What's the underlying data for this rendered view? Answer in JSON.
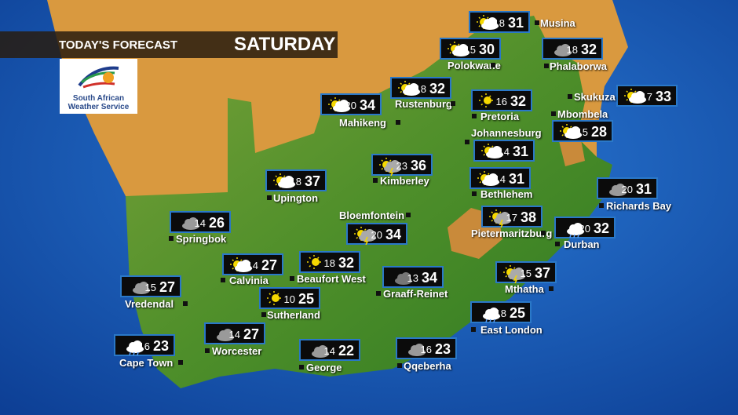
{
  "header": {
    "title": "TODAY'S FORECAST",
    "day": "SATURDAY"
  },
  "logo": {
    "line1": "South African",
    "line2": "Weather Service"
  },
  "colors": {
    "ocean": "#1a5fb8",
    "land": "#4f8f2a",
    "neighbours": "#d9993f",
    "box_border": "#2a78c8"
  },
  "cities": [
    {
      "name": "Musina",
      "min": "18",
      "max": "31",
      "icon": "partly-cloudy-icon"
    },
    {
      "name": "Polokwane",
      "min": "15",
      "max": "30",
      "icon": "partly-cloudy-icon"
    },
    {
      "name": "Phalaborwa",
      "min": "18",
      "max": "32",
      "icon": "cloudy-icon"
    },
    {
      "name": "Rustenburg",
      "min": "18",
      "max": "32",
      "icon": "partly-cloudy-icon"
    },
    {
      "name": "Mahikeng",
      "min": "20",
      "max": "34",
      "icon": "partly-cloudy-icon"
    },
    {
      "name": "Pretoria",
      "min": "16",
      "max": "32",
      "icon": "sunny-icon"
    },
    {
      "name": "Skukuza",
      "min": "17",
      "max": "33",
      "icon": "partly-cloudy-icon"
    },
    {
      "name": "Mbombela",
      "min": "15",
      "max": "28",
      "icon": "partly-cloudy-icon"
    },
    {
      "name": "Johannesburg",
      "min": "14",
      "max": "31",
      "icon": "partly-cloudy-icon"
    },
    {
      "name": "Kimberley",
      "min": "23",
      "max": "36",
      "icon": "thunderstorm-sun-icon"
    },
    {
      "name": "Bethlehem",
      "min": "14",
      "max": "31",
      "icon": "partly-cloudy-icon"
    },
    {
      "name": "Upington",
      "min": "18",
      "max": "37",
      "icon": "partly-cloudy-icon"
    },
    {
      "name": "Richards Bay",
      "min": "20",
      "max": "31",
      "icon": "cloudy-icon"
    },
    {
      "name": "Bloemfontein",
      "min": "20",
      "max": "34",
      "icon": "thunderstorm-sun-icon"
    },
    {
      "name": "Springbok",
      "min": "14",
      "max": "26",
      "icon": "cloudy-icon"
    },
    {
      "name": "Pietermaritzburg",
      "min": "17",
      "max": "38",
      "icon": "thunderstorm-sun-icon"
    },
    {
      "name": "Durban",
      "min": "20",
      "max": "32",
      "icon": "rain-icon"
    },
    {
      "name": "Calvinia",
      "min": "14",
      "max": "27",
      "icon": "partly-cloudy-icon"
    },
    {
      "name": "Beaufort West",
      "min": "18",
      "max": "32",
      "icon": "sunny-icon"
    },
    {
      "name": "Graaff-Reinet",
      "min": "13",
      "max": "34",
      "icon": "dark-cloudy-icon"
    },
    {
      "name": "Mthatha",
      "min": "15",
      "max": "37",
      "icon": "thunderstorm-sun-icon"
    },
    {
      "name": "Vredendal",
      "min": "15",
      "max": "27",
      "icon": "cloudy-icon"
    },
    {
      "name": "Sutherland",
      "min": "10",
      "max": "25",
      "icon": "sunny-icon"
    },
    {
      "name": "East London",
      "min": "18",
      "max": "25",
      "icon": "rain-icon"
    },
    {
      "name": "Worcester",
      "min": "14",
      "max": "27",
      "icon": "cloudy-icon"
    },
    {
      "name": "Cape Town",
      "min": "16",
      "max": "23",
      "icon": "rain-icon"
    },
    {
      "name": "George",
      "min": "14",
      "max": "22",
      "icon": "cloudy-icon"
    },
    {
      "name": "Qqeberha",
      "min": "16",
      "max": "23",
      "icon": "cloudy-icon"
    }
  ]
}
